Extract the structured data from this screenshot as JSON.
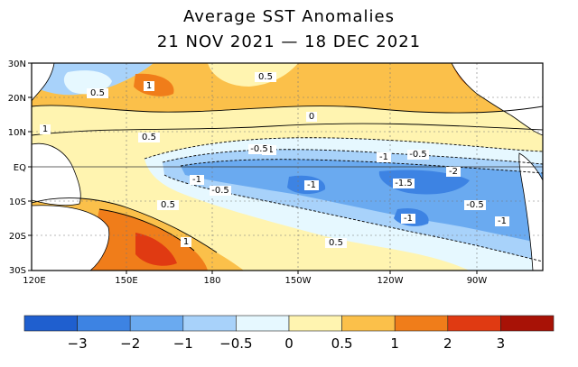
{
  "title": {
    "line1": "Average SST Anomalies",
    "line2": "21 NOV 2021 — 18 DEC 2021"
  },
  "map": {
    "lat_labels": [
      "30N",
      "20N",
      "10N",
      "EQ",
      "10S",
      "20S",
      "30S"
    ],
    "lon_labels": [
      "120E",
      "150E",
      "180",
      "150W",
      "120W",
      "90W"
    ],
    "contour_labels": [
      "-1",
      "-1.5",
      "-0.5",
      "-1",
      "-2",
      "-1",
      "-1",
      "0.5",
      "1",
      "0.5",
      "1",
      "0.5",
      "0",
      "-0.5",
      "0.5",
      "-0.5",
      "-0.5",
      "-1",
      "-1",
      "1",
      "0.5"
    ]
  },
  "colorbar": {
    "ticks": [
      "−3",
      "−2",
      "−1",
      "−0.5",
      "0",
      "0.5",
      "1",
      "2",
      "3"
    ],
    "colors": [
      "#1f5fcf",
      "#3d83e3",
      "#6aaaf0",
      "#a8d2fa",
      "#e6f8ff",
      "#fff4b0",
      "#fbc04a",
      "#f07d1a",
      "#e03a12",
      "#a81206"
    ]
  }
}
